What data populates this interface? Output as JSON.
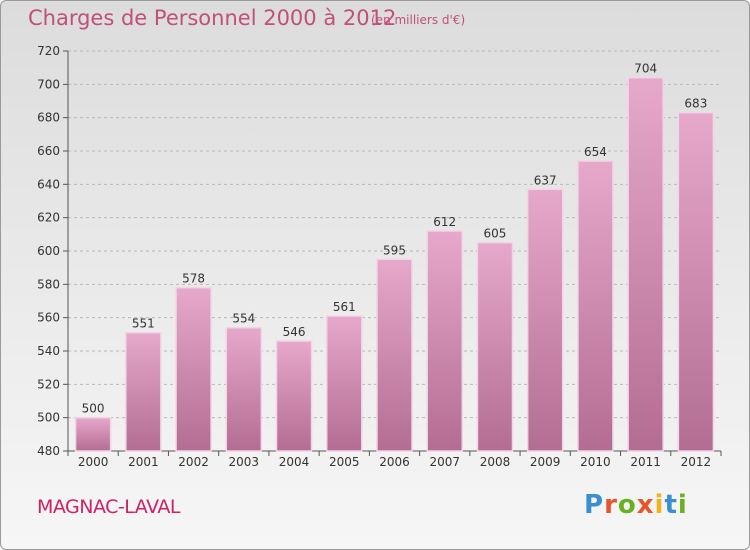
{
  "header": {
    "title": "Charges de Personnel 2000 à 2012",
    "unit": "(en milliers d'€)"
  },
  "footer": {
    "commune": "MAGNAC-LAVAL",
    "logo": {
      "text": "Proxiti",
      "colors": [
        "#3a8fd0",
        "#e8542c",
        "#6ab023",
        "#e8542c",
        "#f0b41c",
        "#3a8fd0",
        "#6ab023"
      ]
    }
  },
  "colors": {
    "bar_top": "#e6a8cb",
    "bar_bottom": "#b36d93",
    "bar_edge": "#f2d4e4",
    "grid": "#b8b8b8",
    "text": "#333333",
    "accent": "#c0507a"
  },
  "chart_data": {
    "type": "bar",
    "title": "Charges de Personnel 2000 à 2012",
    "subtitle": "(en milliers d'€)",
    "categories": [
      "2000",
      "2001",
      "2002",
      "2003",
      "2004",
      "2005",
      "2006",
      "2007",
      "2008",
      "2009",
      "2010",
      "2011",
      "2012"
    ],
    "values": [
      500,
      551,
      578,
      554,
      546,
      561,
      595,
      612,
      605,
      637,
      654,
      704,
      683
    ],
    "ylim": [
      480,
      720
    ],
    "yticks": [
      480,
      500,
      520,
      540,
      560,
      580,
      600,
      620,
      640,
      660,
      680,
      700,
      720
    ],
    "grid": true,
    "data_labels": true
  }
}
